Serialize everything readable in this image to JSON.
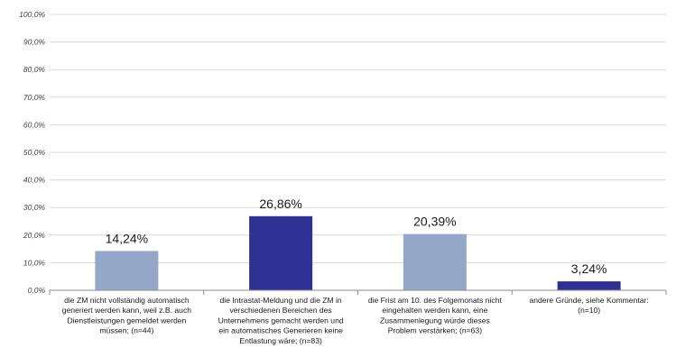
{
  "chart_data": {
    "type": "bar",
    "categories": [
      [
        "die ZM nicht vollständig automatisch",
        "generiert werden kann, weil z.B. auch",
        "Dienstleistungen gemeldet werden",
        "müssen; (n=44)"
      ],
      [
        "die Intrastat-Meldung und die ZM in",
        "verschiedenen Bereichen des",
        "Unternehmens gemacht werden und",
        "ein automatisches Generieren keine",
        "Entlastung wäre; (n=83)"
      ],
      [
        "die Frist am 10. des Folgemonats nicht",
        "eingehalten werden kann, eine",
        "Zusammenlegung würde dieses",
        "Problem verstärken; (n=63)"
      ],
      [
        "andere Gründe, siehe Kommentar:",
        "(n=10)"
      ]
    ],
    "values": [
      14.24,
      26.86,
      20.39,
      3.24
    ],
    "data_labels": [
      "14,24%",
      "26,86%",
      "20,39%",
      "3,24%"
    ],
    "bar_colors": [
      "#95a7c9",
      "#2e3192",
      "#95a7c9",
      "#2e3192"
    ],
    "ylim": [
      0,
      100
    ],
    "yticks": [
      "0,0%",
      "10,0%",
      "20,0%",
      "30,0%",
      "40,0%",
      "50,0%",
      "60,0%",
      "70,0%",
      "80,0%",
      "90,0%",
      "100,0%"
    ],
    "grid": true,
    "title": "",
    "xlabel": "",
    "ylabel": ""
  }
}
